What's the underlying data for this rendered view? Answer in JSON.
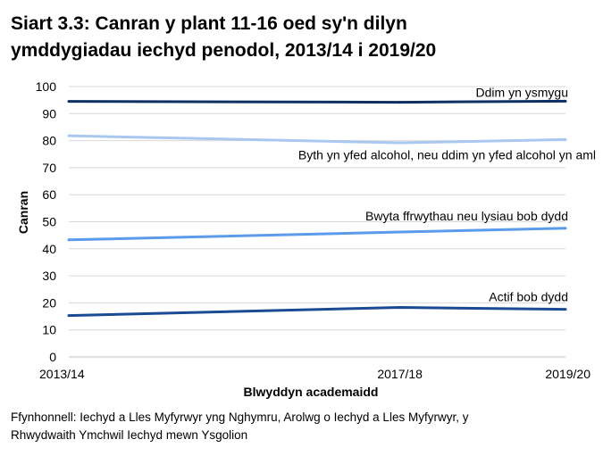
{
  "title": {
    "line1": "Siart 3.3: Canran y plant 11-16 oed sy'n dilyn",
    "line2": "ymddygiadau iechyd penodol, 2013/14 i 2019/20"
  },
  "source": {
    "line1": "Ffynhonnell: Iechyd a Lles Myfyrwyr yng Nghymru, Arolwg o Iechyd a Lles Myfyrwyr, y",
    "line2": "Rhwydwaith Ymchwil Iechyd mewn Ysgolion"
  },
  "chart_data": {
    "type": "line",
    "xlabel": "Blwyddyn academaidd",
    "ylabel": "Canran",
    "categories": [
      "2013/14",
      "2017/18",
      "2019/20"
    ],
    "x_values": [
      2013,
      2017,
      2019
    ],
    "ylim": [
      0,
      100
    ],
    "yticks": [
      0,
      10,
      20,
      30,
      40,
      50,
      60,
      70,
      80,
      90,
      100
    ],
    "grid": true,
    "series": [
      {
        "name": "Ddim yn ysmygu",
        "values": [
          94.5,
          94.2,
          94.6
        ],
        "color": "#0d2f63"
      },
      {
        "name": "Byth yn yfed alcohol, neu ddim yn yfed alcohol yn aml",
        "values": [
          81.8,
          79.2,
          80.4
        ],
        "color": "#a8c8f0"
      },
      {
        "name": "Bwyta ffrwythau neu lysiau bob dydd",
        "values": [
          43.3,
          46.2,
          47.6
        ],
        "color": "#5b9bea"
      },
      {
        "name": "Actif bob dydd",
        "values": [
          15.3,
          18.3,
          17.6
        ],
        "color": "#1b4a94"
      }
    ]
  }
}
